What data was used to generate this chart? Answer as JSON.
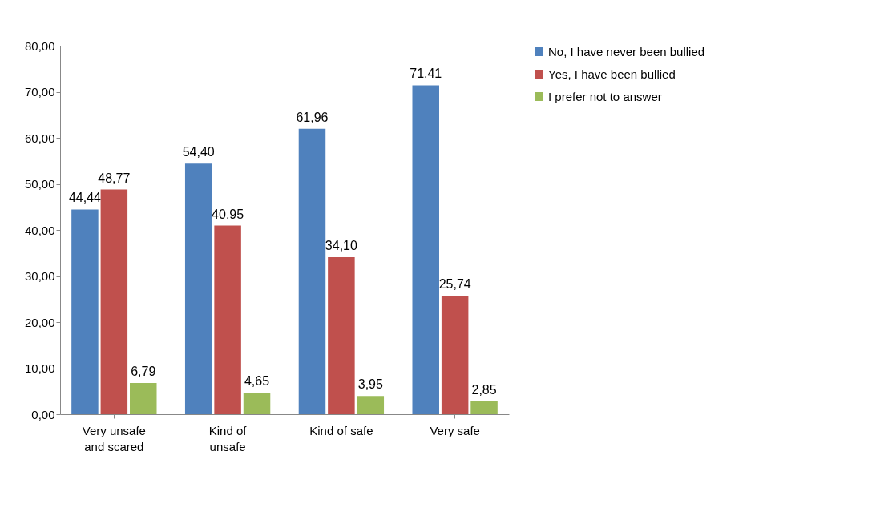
{
  "chart_data": {
    "type": "bar",
    "categories": [
      "Very unsafe and scared",
      "Kind of unsafe",
      "Kind of safe",
      "Very safe"
    ],
    "series": [
      {
        "name": "No, I have never been bullied",
        "color": "#4f81bd",
        "values": [
          44.44,
          54.4,
          61.96,
          71.41
        ],
        "value_labels": [
          "44,44",
          "54,40",
          "61,96",
          "71,41"
        ]
      },
      {
        "name": "Yes, I have been bullied",
        "color": "#c0504d",
        "values": [
          48.77,
          40.95,
          34.1,
          25.74
        ],
        "value_labels": [
          "48,77",
          "40,95",
          "34,10",
          "25,74"
        ]
      },
      {
        "name": "I prefer not to answer",
        "color": "#9bbb59",
        "values": [
          6.79,
          4.65,
          3.95,
          2.85
        ],
        "value_labels": [
          "6,79",
          "4,65",
          "3,95",
          "2,85"
        ]
      }
    ],
    "ylim": [
      0,
      80
    ],
    "yticks": [
      {
        "value": 0,
        "label": "0,00"
      },
      {
        "value": 10,
        "label": "10,00"
      },
      {
        "value": 20,
        "label": "20,00"
      },
      {
        "value": 30,
        "label": "30,00"
      },
      {
        "value": 40,
        "label": "40,00"
      },
      {
        "value": 50,
        "label": "50,00"
      },
      {
        "value": 60,
        "label": "60,00"
      },
      {
        "value": 70,
        "label": "70,00"
      },
      {
        "value": 80,
        "label": "80,00"
      }
    ],
    "grid": false,
    "legend": "right"
  }
}
